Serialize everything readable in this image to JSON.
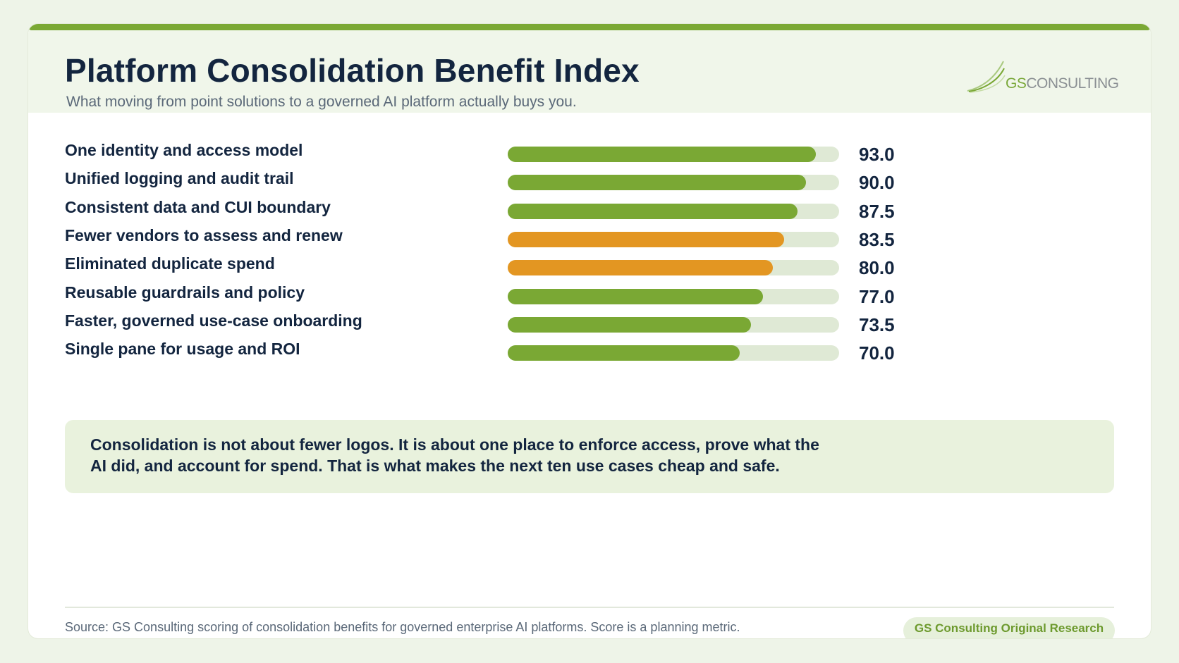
{
  "title": "Platform Consolidation Benefit Index",
  "subtitle": "What moving from point solutions to a governed AI platform actually buys you.",
  "logo": {
    "prefix": "GS",
    "suffix": "CONSULTING"
  },
  "colors": {
    "accent_green": "#7aa834",
    "accent_orange": "#e39622",
    "track": "#dfe9d5",
    "text_dark": "#13253f"
  },
  "chart_data": {
    "type": "bar",
    "orientation": "horizontal",
    "xlim": [
      0,
      100
    ],
    "categories": [
      "One identity and access model",
      "Unified logging and audit trail",
      "Consistent data and CUI boundary",
      "Fewer vendors to assess and renew",
      "Eliminated duplicate spend",
      "Reusable guardrails and policy",
      "Faster, governed use-case onboarding",
      "Single pane for usage and ROI"
    ],
    "values": [
      93.0,
      90.0,
      87.5,
      83.5,
      80.0,
      77.0,
      73.5,
      70.0
    ],
    "value_labels": [
      "93.0",
      "90.0",
      "87.5",
      "83.5",
      "80.0",
      "77.0",
      "73.5",
      "70.0"
    ],
    "bar_colors": [
      "#7aa834",
      "#7aa834",
      "#7aa834",
      "#e39622",
      "#e39622",
      "#7aa834",
      "#7aa834",
      "#7aa834"
    ],
    "grid": false,
    "legend": "none"
  },
  "callout": "Consolidation is not about fewer logos. It is about one place to enforce access, prove what the AI did, and account for spend. That is what makes the next ten use cases cheap and safe.",
  "footer": {
    "source": "Source: GS Consulting scoring of consolidation benefits for governed enterprise AI platforms. Score is a planning metric.",
    "badge": "GS Consulting Original Research"
  }
}
